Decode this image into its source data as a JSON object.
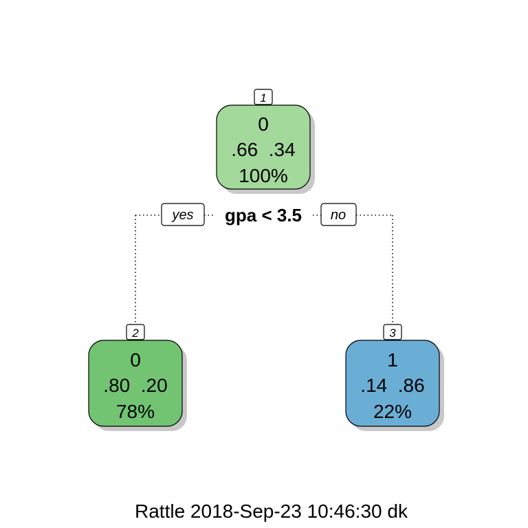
{
  "tree": {
    "nodes": [
      {
        "id": "1",
        "number_label": "1",
        "class_label": "0",
        "probs": ".66  .34",
        "percent": "100%",
        "fill": "#a3d99b"
      },
      {
        "id": "2",
        "number_label": "2",
        "class_label": "0",
        "probs": ".80  .20",
        "percent": "78%",
        "fill": "#72c473"
      },
      {
        "id": "3",
        "number_label": "3",
        "class_label": "1",
        "probs": ".14  .86",
        "percent": "22%",
        "fill": "#6aaed6"
      }
    ],
    "split": {
      "text": "gpa < 3.5"
    },
    "branches": {
      "yes": "yes",
      "no": "no"
    }
  },
  "footer": {
    "text": "Rattle 2018-Sep-23 10:46:30 dk"
  },
  "colors": {
    "shadow": "#c8c8c8",
    "stroke": "#000000"
  }
}
